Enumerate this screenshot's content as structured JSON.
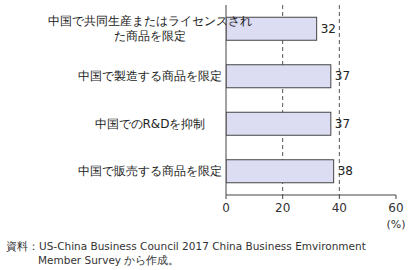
{
  "chart_data": {
    "type": "bar",
    "orientation": "horizontal",
    "categories": [
      "中国で共同生産またはライセンスされた商品を限定",
      "中国で製造する商品を限定",
      "中国でのR&Dを抑制",
      "中国で販売する商品を限定"
    ],
    "values": [
      32,
      37,
      37,
      38
    ],
    "color": "#dcdcf2",
    "xlim": [
      0,
      60
    ],
    "xticks": [
      0,
      20,
      40,
      60
    ],
    "x_label": "(%)",
    "grid": true,
    "data_labels": true,
    "source": "資料：US-China Business Council 2017 China Business Emvironment Member Survey から作成。"
  }
}
